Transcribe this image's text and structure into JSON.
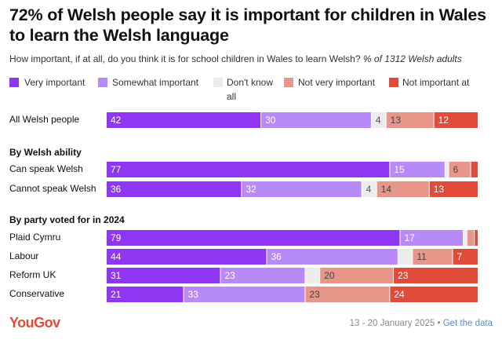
{
  "title": "72% of Welsh people say it is important for children in Wales to learn the Welsh language",
  "subtitle": "How important, if at all, do you think it is for school children in Wales to learn Welsh?",
  "subtitle_note": "% of 1312 Welsh adults",
  "colors": {
    "very_important": "#8e36f2",
    "somewhat_important": "#b78af7",
    "dont_know": "#ececec",
    "not_very_important": "#e8958a",
    "not_important_at_all": "#e04b3b"
  },
  "legend": [
    {
      "label": "Very important",
      "color": "#8e36f2"
    },
    {
      "label": "Somewhat important",
      "color": "#b78af7"
    },
    {
      "label": "Don't know all",
      "color": "#ececec"
    },
    {
      "label": "Not very important",
      "color": "#e8958a"
    },
    {
      "label": "Not important at",
      "color": "#e04b3b"
    }
  ],
  "chart_data": {
    "type": "bar",
    "orientation": "horizontal",
    "stacked": true,
    "groups": [
      {
        "heading": "",
        "rows": [
          "All Welsh people"
        ]
      },
      {
        "heading": "By Welsh ability",
        "rows": [
          "Can speak Welsh",
          "Cannot speak Welsh"
        ]
      },
      {
        "heading": "By party voted for in 2024",
        "rows": [
          "Plaid Cymru",
          "Labour",
          "Reform UK",
          "Conservative"
        ]
      }
    ],
    "categories": [
      "All Welsh people",
      "Can speak Welsh",
      "Cannot speak Welsh",
      "Plaid Cymru",
      "Labour",
      "Reform UK",
      "Conservative"
    ],
    "series": [
      {
        "name": "Very important",
        "values": [
          42,
          77,
          36,
          79,
          44,
          31,
          21
        ]
      },
      {
        "name": "Somewhat important",
        "values": [
          30,
          15,
          32,
          17,
          36,
          23,
          33
        ]
      },
      {
        "name": "Don't know",
        "values": [
          4,
          1,
          4,
          1,
          4,
          4,
          0
        ]
      },
      {
        "name": "Not very important",
        "values": [
          13,
          6,
          14,
          2,
          11,
          20,
          23
        ]
      },
      {
        "name": "Not important at all",
        "values": [
          12,
          2,
          13,
          1,
          7,
          23,
          24
        ]
      }
    ],
    "labels": [
      [
        "42",
        "30",
        "4",
        "13",
        "12"
      ],
      [
        "77",
        "15",
        "",
        "6",
        ""
      ],
      [
        "36",
        "32",
        "4",
        "14",
        "13"
      ],
      [
        "79",
        "17",
        "",
        "",
        ""
      ],
      [
        "44",
        "36",
        "",
        "11",
        "7"
      ],
      [
        "31",
        "23",
        "",
        "20",
        "23"
      ],
      [
        "21",
        "33",
        "",
        "23",
        "24"
      ]
    ]
  },
  "footer": {
    "brand": "YouGov",
    "dates": "13 - 20 January 2025 •",
    "link": "Get the data"
  }
}
